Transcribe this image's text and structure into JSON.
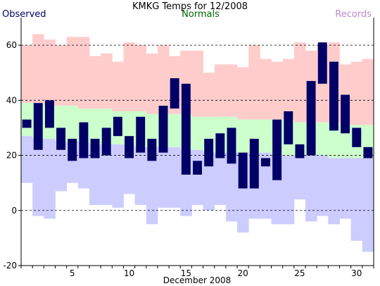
{
  "chart_data": {
    "type": "bar",
    "title": "KMKG Temps for 12/2008",
    "xlabel": "December 2008",
    "ylabel": "",
    "ylim": [
      -20,
      70
    ],
    "yticks": [
      -20,
      0,
      20,
      40,
      60
    ],
    "xticks": [
      5,
      10,
      15,
      20,
      25,
      30
    ],
    "grid": "dashed horizontal at y ticks",
    "legend_entries": [
      {
        "name": "Observed",
        "color": "#000066",
        "placement": "top-left"
      },
      {
        "name": "Normals",
        "color": "#006600",
        "placement": "top-center"
      },
      {
        "name": "Records",
        "color": "#bb88cc",
        "placement": "top-right"
      }
    ],
    "days": [
      1,
      2,
      3,
      4,
      5,
      6,
      7,
      8,
      9,
      10,
      11,
      12,
      13,
      14,
      15,
      16,
      17,
      18,
      19,
      20,
      21,
      22,
      23,
      24,
      25,
      26,
      27,
      28,
      29,
      30,
      31
    ],
    "record_high": [
      60,
      64,
      62,
      60,
      63,
      63,
      56,
      57,
      54,
      61,
      60,
      57,
      60,
      56,
      58,
      58,
      50,
      53,
      53,
      52,
      60,
      55,
      54,
      55,
      61,
      58,
      60,
      61,
      53,
      54,
      55
    ],
    "record_low": [
      10,
      -2,
      -3,
      7,
      10,
      8,
      2,
      2,
      1,
      6,
      2,
      -5,
      1,
      1,
      -2,
      2,
      0,
      2,
      -4,
      -8,
      -3,
      -3,
      -5,
      -5,
      4,
      -4,
      -2,
      -5,
      -3,
      -11,
      -15
    ],
    "normal_high": [
      39,
      39,
      38,
      38,
      38,
      37,
      37,
      37,
      36,
      36,
      36,
      35,
      35,
      35,
      35,
      34,
      34,
      34,
      34,
      33,
      33,
      33,
      33,
      33,
      32,
      32,
      32,
      32,
      31,
      31,
      31
    ],
    "normal_low": [
      27,
      26,
      26,
      25,
      25,
      25,
      24,
      24,
      24,
      24,
      23,
      23,
      23,
      23,
      22,
      22,
      21,
      21,
      21,
      21,
      21,
      21,
      20,
      20,
      20,
      20,
      20,
      19,
      19,
      19,
      19
    ],
    "observed_high": [
      33,
      39,
      40,
      30,
      26,
      32,
      26,
      30,
      34,
      27,
      34,
      26,
      38,
      48,
      46,
      18,
      26,
      28,
      30,
      21,
      26,
      19,
      33,
      36,
      24,
      47,
      61,
      54,
      42,
      30,
      23
    ],
    "observed_low": [
      30,
      22,
      30,
      22,
      18,
      19,
      19,
      20,
      27,
      19,
      21,
      18,
      21,
      37,
      13,
      13,
      16,
      19,
      17,
      8,
      8,
      16,
      11,
      24,
      19,
      20,
      46,
      29,
      28,
      23,
      19
    ],
    "colors": {
      "record_band": "#ffcccc",
      "normal_band": "#ccffcc",
      "low_band": "#ccccff",
      "observed_bar": "#000066",
      "grid": "#000000",
      "axis": "#000000"
    }
  }
}
